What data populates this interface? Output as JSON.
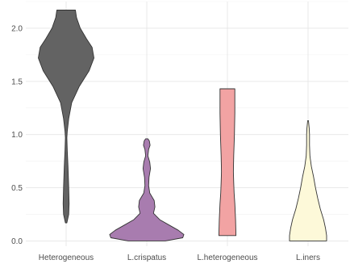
{
  "chart_data": {
    "type": "violin",
    "title": "",
    "xlabel": "",
    "ylabel": "",
    "categories": [
      "Heterogeneous",
      "L.crispatus",
      "L.heterogeneous",
      "L.iners"
    ],
    "y_ticks": [
      "0.0",
      "0.5",
      "1.0",
      "1.5",
      "2.0"
    ],
    "ylim": [
      -0.05,
      2.25
    ],
    "grid": true,
    "legend": "none",
    "series": [
      {
        "category": "Heterogeneous",
        "color": "#636363",
        "min": 0.17,
        "max": 2.17,
        "density": [
          [
            0.17,
            0.02
          ],
          [
            0.25,
            0.07
          ],
          [
            0.35,
            0.08
          ],
          [
            0.5,
            0.07
          ],
          [
            0.7,
            0.05
          ],
          [
            0.85,
            0.03
          ],
          [
            0.97,
            0.02
          ],
          [
            1.03,
            0.03
          ],
          [
            1.15,
            0.07
          ],
          [
            1.3,
            0.15
          ],
          [
            1.45,
            0.35
          ],
          [
            1.6,
            0.62
          ],
          [
            1.72,
            0.75
          ],
          [
            1.82,
            0.7
          ],
          [
            1.9,
            0.55
          ],
          [
            2.0,
            0.38
          ],
          [
            2.1,
            0.28
          ],
          [
            2.17,
            0.25
          ]
        ]
      },
      {
        "category": "L.crispatus",
        "color": "#a87caf",
        "min": 0.0,
        "max": 0.96,
        "density": [
          [
            0.0,
            0.5
          ],
          [
            0.03,
            0.97
          ],
          [
            0.06,
            1.0
          ],
          [
            0.1,
            0.85
          ],
          [
            0.15,
            0.6
          ],
          [
            0.2,
            0.35
          ],
          [
            0.26,
            0.18
          ],
          [
            0.32,
            0.22
          ],
          [
            0.38,
            0.2
          ],
          [
            0.45,
            0.08
          ],
          [
            0.52,
            0.05
          ],
          [
            0.6,
            0.06
          ],
          [
            0.68,
            0.1
          ],
          [
            0.74,
            0.08
          ],
          [
            0.8,
            0.03
          ],
          [
            0.86,
            0.05
          ],
          [
            0.9,
            0.09
          ],
          [
            0.94,
            0.07
          ],
          [
            0.96,
            0.03
          ]
        ]
      },
      {
        "category": "L.heterogeneous",
        "color": "#f2a3a3",
        "min": 0.05,
        "max": 1.43,
        "density": [
          [
            0.05,
            0.23
          ],
          [
            0.2,
            0.22
          ],
          [
            0.35,
            0.2
          ],
          [
            0.45,
            0.18
          ],
          [
            0.55,
            0.17
          ],
          [
            0.65,
            0.16
          ],
          [
            0.8,
            0.17
          ],
          [
            1.0,
            0.19
          ],
          [
            1.2,
            0.2
          ],
          [
            1.43,
            0.2
          ]
        ]
      },
      {
        "category": "L.iners",
        "color": "#fdf9d9",
        "min": 0.0,
        "max": 1.13,
        "density": [
          [
            0.0,
            0.5
          ],
          [
            0.05,
            0.5
          ],
          [
            0.12,
            0.47
          ],
          [
            0.2,
            0.42
          ],
          [
            0.3,
            0.33
          ],
          [
            0.4,
            0.26
          ],
          [
            0.5,
            0.2
          ],
          [
            0.6,
            0.15
          ],
          [
            0.7,
            0.09
          ],
          [
            0.8,
            0.05
          ],
          [
            0.9,
            0.04
          ],
          [
            1.0,
            0.04
          ],
          [
            1.06,
            0.03
          ],
          [
            1.13,
            0.01
          ]
        ]
      }
    ]
  }
}
